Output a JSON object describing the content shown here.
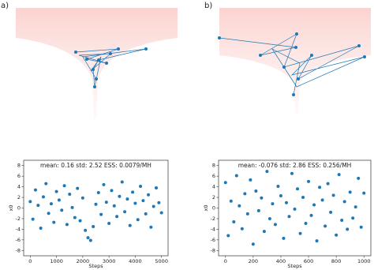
{
  "chart_data": [
    {
      "type": "scatter",
      "panel_label": "a)",
      "annotation": "mean: 0.16  std: 2.52  ESS: 0.0079/MH",
      "xlabel": "Steps",
      "ylabel": "x0",
      "color": "#1f77b4",
      "xlim": [
        -250,
        5250
      ],
      "ylim": [
        -9,
        9
      ],
      "xticks": [
        0,
        1000,
        2000,
        3000,
        4000,
        5000
      ],
      "yticks": [
        -8,
        -6,
        -4,
        -2,
        0,
        2,
        4,
        6,
        8
      ],
      "x": [
        0,
        100,
        200,
        300,
        400,
        500,
        600,
        700,
        800,
        900,
        1000,
        1100,
        1200,
        1300,
        1400,
        1500,
        1600,
        1700,
        1800,
        1900,
        2000,
        2100,
        2200,
        2300,
        2400,
        2500,
        2600,
        2700,
        2800,
        2900,
        3000,
        3100,
        3200,
        3300,
        3400,
        3500,
        3600,
        3700,
        3800,
        3900,
        4000,
        4100,
        4200,
        4300,
        4400,
        4500,
        4600,
        4700,
        4800,
        4900,
        5000
      ],
      "values": [
        1.2,
        -2.1,
        3.4,
        0.5,
        -3.8,
        2.1,
        4.6,
        -1.0,
        0.8,
        -2.7,
        3.1,
        1.5,
        -0.4,
        4.2,
        -3.1,
        2.6,
        0.1,
        -1.8,
        3.7,
        -2.4,
        1.9,
        -4.2,
        -5.6,
        -6.1,
        -3.5,
        0.7,
        2.9,
        -1.2,
        4.4,
        1.1,
        -2.9,
        3.3,
        0.4,
        -1.6,
        2.2,
        4.9,
        -0.7,
        1.7,
        -3.3,
        3.0,
        0.9,
        -2.2,
        4.1,
        1.4,
        -1.1,
        2.5,
        -3.6,
        0.3,
        3.8,
        1.0,
        -0.9
      ]
    },
    {
      "type": "scatter",
      "panel_label": "b)",
      "annotation": "mean: -0.076  std: 2.86  ESS: 0.256/MH",
      "xlabel": "Steps",
      "ylabel": "x0",
      "color": "#1f77b4",
      "xlim": [
        -50,
        1050
      ],
      "ylim": [
        -9,
        9
      ],
      "xticks": [
        0,
        200,
        400,
        600,
        800,
        1000
      ],
      "yticks": [
        -8,
        -6,
        -4,
        -2,
        0,
        2,
        4,
        6,
        8
      ],
      "x": [
        0,
        20,
        40,
        60,
        80,
        100,
        120,
        140,
        160,
        180,
        200,
        220,
        240,
        260,
        280,
        300,
        320,
        340,
        360,
        380,
        400,
        420,
        440,
        460,
        480,
        500,
        520,
        540,
        560,
        580,
        600,
        620,
        640,
        660,
        680,
        700,
        720,
        740,
        760,
        780,
        800,
        820,
        840,
        860,
        880,
        900,
        920,
        940,
        960,
        980,
        1000
      ],
      "values": [
        4.8,
        -5.2,
        1.3,
        -2.6,
        6.1,
        0.4,
        -3.9,
        2.7,
        -1.1,
        5.3,
        -6.8,
        3.2,
        -0.5,
        1.9,
        -4.4,
        6.9,
        -2.0,
        0.8,
        -3.1,
        4.1,
        2.3,
        -5.7,
        1.0,
        -1.6,
        6.5,
        -0.2,
        3.6,
        -4.8,
        2.0,
        -2.9,
        5.0,
        -1.4,
        0.6,
        -6.2,
        3.9,
        1.5,
        -3.4,
        4.6,
        -0.8,
        2.4,
        -5.1,
        6.3,
        -2.3,
        1.2,
        -4.0,
        3.0,
        -1.9,
        0.2,
        5.6,
        -3.6,
        2.8
      ]
    }
  ]
}
